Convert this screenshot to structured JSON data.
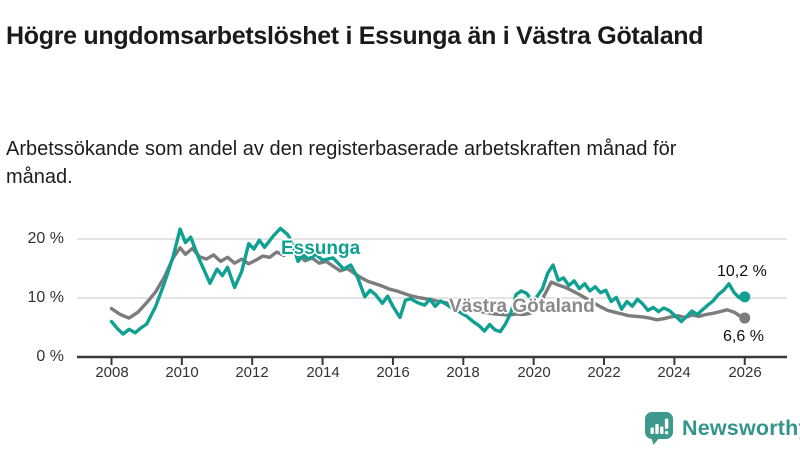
{
  "header": {
    "title": "Högre ungdomsarbetslöshet i Essunga än i Västra Götaland",
    "subtitle": "Arbetssökande som andel av den registerbaserade arbetskraften månad för månad."
  },
  "colors": {
    "essunga_teal": "#10a092",
    "vastra_gray": "#7c7c7c",
    "gridline": "#dcdcdc",
    "axis": "#3a3a3a",
    "tick_text": "#333333",
    "logo_teal": "#3d988e"
  },
  "chart_data": {
    "type": "line",
    "title": "Högre ungdomsarbetslöshet i Essunga än i Västra Götaland",
    "subtitle": "Arbetssökande som andel av den registerbaserade arbetskraften månad för månad.",
    "unit": "%",
    "xlim": [
      2007.8,
      2026.5
    ],
    "ylim": [
      0,
      23
    ],
    "grid": "horizontal",
    "legend_position": "inline-labels",
    "yticks": [
      20,
      10,
      0
    ],
    "ytick_labels": [
      "20 %",
      "10 %",
      "0 %"
    ],
    "xticks": [
      2008,
      2010,
      2012,
      2014,
      2016,
      2018,
      2020,
      2022,
      2024,
      2026
    ],
    "xtick_labels": [
      "2008",
      "2010",
      "2012",
      "2014",
      "2016",
      "2018",
      "2020",
      "2022",
      "2024",
      "2026"
    ],
    "series": [
      {
        "name": "Essunga",
        "color": "#10a092",
        "end_label": "10,2 %",
        "end_value": 10.2,
        "points": [
          [
            2008.0,
            6.0
          ],
          [
            2008.17,
            4.8
          ],
          [
            2008.33,
            3.9
          ],
          [
            2008.5,
            4.7
          ],
          [
            2008.67,
            4.1
          ],
          [
            2008.83,
            4.9
          ],
          [
            2009.0,
            5.6
          ],
          [
            2009.25,
            8.5
          ],
          [
            2009.5,
            12.5
          ],
          [
            2009.75,
            17.0
          ],
          [
            2009.95,
            21.7
          ],
          [
            2010.1,
            19.4
          ],
          [
            2010.25,
            20.3
          ],
          [
            2010.5,
            16.5
          ],
          [
            2010.8,
            12.5
          ],
          [
            2011.0,
            14.9
          ],
          [
            2011.15,
            13.8
          ],
          [
            2011.3,
            15.2
          ],
          [
            2011.5,
            11.8
          ],
          [
            2011.7,
            14.5
          ],
          [
            2011.9,
            19.2
          ],
          [
            2012.05,
            18.3
          ],
          [
            2012.2,
            19.8
          ],
          [
            2012.35,
            18.6
          ],
          [
            2012.6,
            20.5
          ],
          [
            2012.8,
            21.8
          ],
          [
            2013.0,
            20.8
          ],
          [
            2013.15,
            19.3
          ],
          [
            2013.3,
            16.2
          ],
          [
            2013.45,
            17.3
          ],
          [
            2013.6,
            16.6
          ],
          [
            2013.8,
            17.4
          ],
          [
            2014.0,
            16.4
          ],
          [
            2014.3,
            16.8
          ],
          [
            2014.6,
            14.9
          ],
          [
            2014.8,
            15.6
          ],
          [
            2015.0,
            13.4
          ],
          [
            2015.2,
            10.2
          ],
          [
            2015.35,
            11.3
          ],
          [
            2015.5,
            10.6
          ],
          [
            2015.7,
            9.1
          ],
          [
            2015.85,
            10.3
          ],
          [
            2016.0,
            8.6
          ],
          [
            2016.2,
            6.7
          ],
          [
            2016.35,
            9.6
          ],
          [
            2016.5,
            9.9
          ],
          [
            2016.7,
            9.2
          ],
          [
            2016.9,
            8.8
          ],
          [
            2017.05,
            9.8
          ],
          [
            2017.2,
            8.6
          ],
          [
            2017.35,
            9.5
          ],
          [
            2017.5,
            9.0
          ],
          [
            2017.7,
            8.2
          ],
          [
            2017.9,
            7.6
          ],
          [
            2018.1,
            6.9
          ],
          [
            2018.3,
            5.9
          ],
          [
            2018.45,
            5.3
          ],
          [
            2018.6,
            4.4
          ],
          [
            2018.75,
            5.5
          ],
          [
            2018.9,
            4.6
          ],
          [
            2019.05,
            4.3
          ],
          [
            2019.2,
            5.6
          ],
          [
            2019.35,
            7.5
          ],
          [
            2019.5,
            10.6
          ],
          [
            2019.65,
            11.2
          ],
          [
            2019.8,
            10.8
          ],
          [
            2019.95,
            9.6
          ],
          [
            2020.1,
            10.3
          ],
          [
            2020.25,
            11.6
          ],
          [
            2020.4,
            14.2
          ],
          [
            2020.55,
            15.6
          ],
          [
            2020.7,
            13.0
          ],
          [
            2020.85,
            13.4
          ],
          [
            2021.0,
            12.1
          ],
          [
            2021.15,
            12.9
          ],
          [
            2021.3,
            11.6
          ],
          [
            2021.45,
            12.4
          ],
          [
            2021.6,
            11.2
          ],
          [
            2021.75,
            11.9
          ],
          [
            2021.9,
            10.9
          ],
          [
            2022.05,
            11.3
          ],
          [
            2022.2,
            9.4
          ],
          [
            2022.35,
            10.1
          ],
          [
            2022.5,
            8.1
          ],
          [
            2022.65,
            9.4
          ],
          [
            2022.8,
            8.6
          ],
          [
            2022.95,
            9.8
          ],
          [
            2023.1,
            9.0
          ],
          [
            2023.25,
            7.9
          ],
          [
            2023.4,
            8.4
          ],
          [
            2023.55,
            7.7
          ],
          [
            2023.7,
            8.3
          ],
          [
            2023.85,
            7.9
          ],
          [
            2024.0,
            7.1
          ],
          [
            2024.2,
            6.0
          ],
          [
            2024.35,
            6.9
          ],
          [
            2024.5,
            7.8
          ],
          [
            2024.65,
            7.2
          ],
          [
            2024.8,
            8.0
          ],
          [
            2024.95,
            8.8
          ],
          [
            2025.1,
            9.5
          ],
          [
            2025.25,
            10.6
          ],
          [
            2025.4,
            11.3
          ],
          [
            2025.55,
            12.4
          ],
          [
            2025.7,
            10.9
          ],
          [
            2025.85,
            10.0
          ],
          [
            2026.0,
            10.2
          ]
        ]
      },
      {
        "name": "Västra Götaland",
        "color": "#7c7c7c",
        "end_label": "6,6 %",
        "end_value": 6.6,
        "points": [
          [
            2008.0,
            8.2
          ],
          [
            2008.25,
            7.2
          ],
          [
            2008.5,
            6.6
          ],
          [
            2008.75,
            7.6
          ],
          [
            2009.0,
            9.2
          ],
          [
            2009.25,
            11.0
          ],
          [
            2009.5,
            13.5
          ],
          [
            2009.75,
            16.8
          ],
          [
            2009.95,
            18.5
          ],
          [
            2010.1,
            17.4
          ],
          [
            2010.3,
            18.4
          ],
          [
            2010.5,
            17.0
          ],
          [
            2010.7,
            16.6
          ],
          [
            2010.9,
            17.3
          ],
          [
            2011.1,
            16.2
          ],
          [
            2011.3,
            16.9
          ],
          [
            2011.5,
            15.9
          ],
          [
            2011.7,
            16.6
          ],
          [
            2011.9,
            15.8
          ],
          [
            2012.1,
            16.4
          ],
          [
            2012.3,
            17.1
          ],
          [
            2012.5,
            16.9
          ],
          [
            2012.7,
            17.8
          ],
          [
            2012.9,
            17.2
          ],
          [
            2013.1,
            18.2
          ],
          [
            2013.3,
            17.5
          ],
          [
            2013.5,
            16.3
          ],
          [
            2013.7,
            16.8
          ],
          [
            2013.9,
            15.9
          ],
          [
            2014.1,
            16.2
          ],
          [
            2014.3,
            15.4
          ],
          [
            2014.5,
            14.6
          ],
          [
            2014.7,
            15.0
          ],
          [
            2014.9,
            14.2
          ],
          [
            2015.1,
            13.4
          ],
          [
            2015.3,
            12.8
          ],
          [
            2015.5,
            12.4
          ],
          [
            2015.7,
            12.0
          ],
          [
            2015.9,
            11.5
          ],
          [
            2016.1,
            11.2
          ],
          [
            2016.3,
            10.8
          ],
          [
            2016.5,
            10.4
          ],
          [
            2016.7,
            10.1
          ],
          [
            2016.9,
            9.9
          ],
          [
            2017.1,
            9.7
          ],
          [
            2017.3,
            9.4
          ],
          [
            2017.5,
            9.2
          ],
          [
            2017.7,
            8.9
          ],
          [
            2017.9,
            8.5
          ],
          [
            2018.1,
            8.1
          ],
          [
            2018.3,
            7.9
          ],
          [
            2018.5,
            7.7
          ],
          [
            2018.7,
            7.5
          ],
          [
            2018.9,
            7.3
          ],
          [
            2019.1,
            7.2
          ],
          [
            2019.3,
            7.1
          ],
          [
            2019.5,
            7.3
          ],
          [
            2019.7,
            7.2
          ],
          [
            2019.9,
            7.4
          ],
          [
            2020.1,
            8.2
          ],
          [
            2020.3,
            10.4
          ],
          [
            2020.5,
            12.7
          ],
          [
            2020.7,
            12.2
          ],
          [
            2020.9,
            11.8
          ],
          [
            2021.1,
            11.2
          ],
          [
            2021.3,
            10.6
          ],
          [
            2021.5,
            9.9
          ],
          [
            2021.7,
            9.2
          ],
          [
            2021.9,
            8.5
          ],
          [
            2022.1,
            7.9
          ],
          [
            2022.3,
            7.6
          ],
          [
            2022.5,
            7.3
          ],
          [
            2022.7,
            7.0
          ],
          [
            2022.9,
            6.9
          ],
          [
            2023.1,
            6.8
          ],
          [
            2023.3,
            6.6
          ],
          [
            2023.5,
            6.3
          ],
          [
            2023.7,
            6.5
          ],
          [
            2023.9,
            6.8
          ],
          [
            2024.1,
            7.0
          ],
          [
            2024.3,
            6.7
          ],
          [
            2024.5,
            7.1
          ],
          [
            2024.7,
            6.9
          ],
          [
            2024.9,
            7.2
          ],
          [
            2025.1,
            7.4
          ],
          [
            2025.3,
            7.7
          ],
          [
            2025.5,
            8.0
          ],
          [
            2025.7,
            7.6
          ],
          [
            2025.85,
            7.0
          ],
          [
            2026.0,
            6.6
          ]
        ]
      }
    ]
  },
  "footer": {
    "brand": "Newsworthy",
    "brand_icon": "bar-chart-speech-bubble-icon"
  }
}
